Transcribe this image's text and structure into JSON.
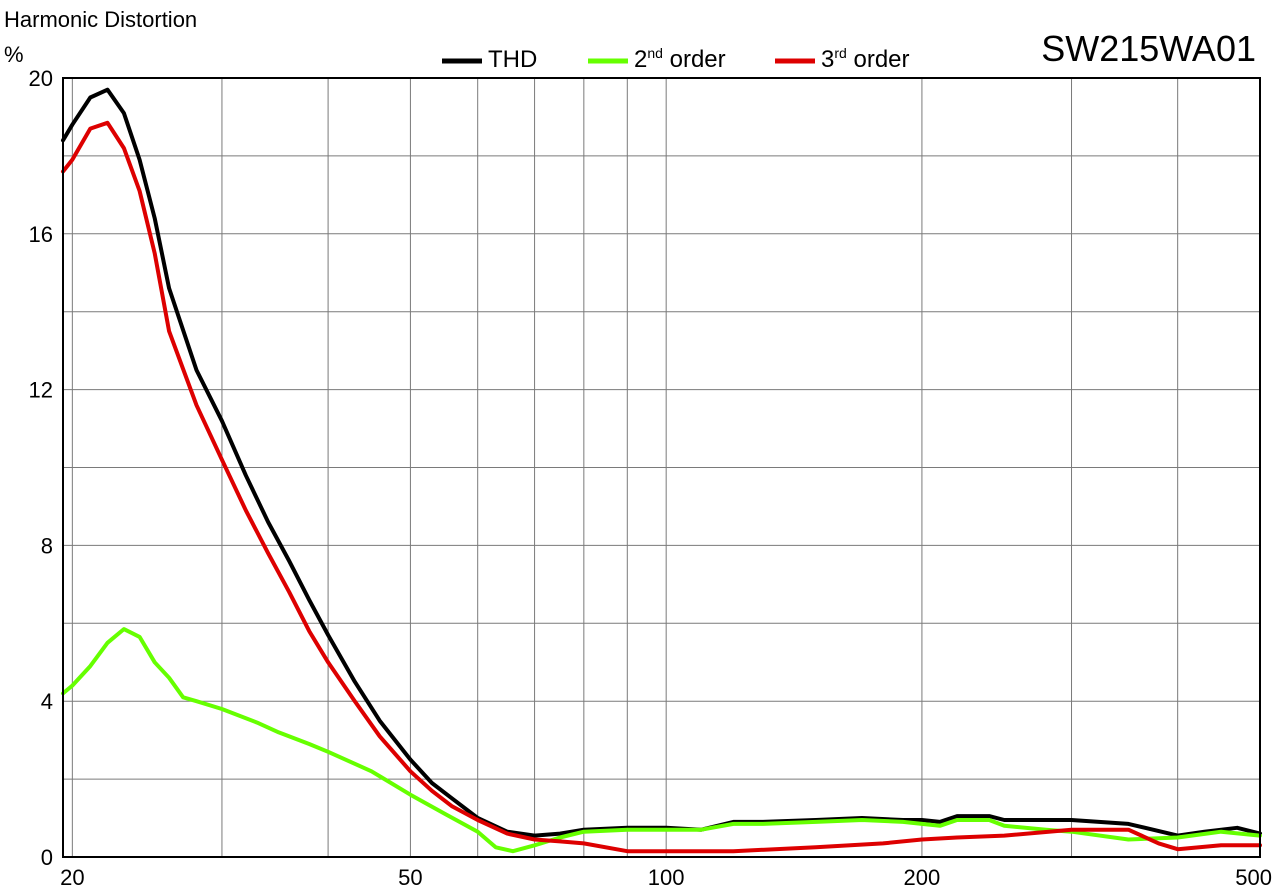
{
  "chart_data": {
    "type": "line",
    "title": "Harmonic Distortion",
    "model": "SW215WA01",
    "ylabel": "%",
    "xlabel": "",
    "x_scale": "log",
    "xlim": [
      19.5,
      500
    ],
    "ylim": [
      0,
      20
    ],
    "grid": true,
    "legend_placement": "top",
    "x_ticks": [
      {
        "value": 20,
        "label": "20"
      },
      {
        "value": 50,
        "label": "50"
      },
      {
        "value": 100,
        "label": "100"
      },
      {
        "value": 200,
        "label": "200"
      },
      {
        "value": 500,
        "label": "500"
      }
    ],
    "x_gridlines": [
      20,
      30,
      40,
      50,
      60,
      70,
      80,
      90,
      100,
      200,
      300,
      400,
      500
    ],
    "y_ticks": [
      {
        "value": 0,
        "label": "0"
      },
      {
        "value": 4,
        "label": "4"
      },
      {
        "value": 8,
        "label": "8"
      },
      {
        "value": 12,
        "label": "12"
      },
      {
        "value": 16,
        "label": "16"
      },
      {
        "value": 20,
        "label": "20"
      }
    ],
    "y_gridlines": [
      0,
      2,
      4,
      6,
      8,
      10,
      12,
      14,
      16,
      18,
      20
    ],
    "series": [
      {
        "name": "THD",
        "name_sup": "",
        "name_suffix": "",
        "color": "#000000",
        "points": [
          [
            19.5,
            18.4
          ],
          [
            20,
            18.8
          ],
          [
            21,
            19.5
          ],
          [
            22,
            19.7
          ],
          [
            23,
            19.1
          ],
          [
            24,
            17.9
          ],
          [
            25,
            16.4
          ],
          [
            26,
            14.6
          ],
          [
            28,
            12.5
          ],
          [
            30,
            11.2
          ],
          [
            32,
            9.8
          ],
          [
            34,
            8.6
          ],
          [
            36,
            7.6
          ],
          [
            38,
            6.6
          ],
          [
            40,
            5.7
          ],
          [
            43,
            4.5
          ],
          [
            46,
            3.5
          ],
          [
            50,
            2.5
          ],
          [
            53,
            1.9
          ],
          [
            56,
            1.5
          ],
          [
            60,
            1.0
          ],
          [
            65,
            0.65
          ],
          [
            70,
            0.55
          ],
          [
            75,
            0.6
          ],
          [
            80,
            0.7
          ],
          [
            90,
            0.75
          ],
          [
            100,
            0.75
          ],
          [
            110,
            0.7
          ],
          [
            120,
            0.9
          ],
          [
            130,
            0.9
          ],
          [
            150,
            0.95
          ],
          [
            170,
            1.0
          ],
          [
            190,
            0.95
          ],
          [
            200,
            0.95
          ],
          [
            210,
            0.9
          ],
          [
            220,
            1.05
          ],
          [
            240,
            1.05
          ],
          [
            250,
            0.95
          ],
          [
            300,
            0.95
          ],
          [
            350,
            0.85
          ],
          [
            400,
            0.55
          ],
          [
            430,
            0.65
          ],
          [
            470,
            0.75
          ],
          [
            500,
            0.6
          ]
        ]
      },
      {
        "name": "2",
        "name_sup": "nd",
        "name_suffix": " order",
        "color": "#66ff00",
        "points": [
          [
            19.5,
            4.2
          ],
          [
            20,
            4.4
          ],
          [
            21,
            4.9
          ],
          [
            22,
            5.5
          ],
          [
            23,
            5.85
          ],
          [
            24,
            5.65
          ],
          [
            25,
            5.0
          ],
          [
            26,
            4.6
          ],
          [
            27,
            4.1
          ],
          [
            28,
            4.0
          ],
          [
            30,
            3.8
          ],
          [
            33,
            3.45
          ],
          [
            35,
            3.2
          ],
          [
            38,
            2.9
          ],
          [
            40,
            2.7
          ],
          [
            45,
            2.2
          ],
          [
            50,
            1.6
          ],
          [
            55,
            1.1
          ],
          [
            60,
            0.65
          ],
          [
            63,
            0.25
          ],
          [
            66,
            0.15
          ],
          [
            70,
            0.3
          ],
          [
            75,
            0.5
          ],
          [
            80,
            0.65
          ],
          [
            90,
            0.7
          ],
          [
            100,
            0.7
          ],
          [
            110,
            0.7
          ],
          [
            120,
            0.85
          ],
          [
            130,
            0.85
          ],
          [
            150,
            0.9
          ],
          [
            170,
            0.95
          ],
          [
            190,
            0.9
          ],
          [
            200,
            0.85
          ],
          [
            210,
            0.8
          ],
          [
            220,
            0.95
          ],
          [
            240,
            0.95
          ],
          [
            250,
            0.8
          ],
          [
            280,
            0.7
          ],
          [
            300,
            0.65
          ],
          [
            350,
            0.45
          ],
          [
            400,
            0.5
          ],
          [
            450,
            0.65
          ],
          [
            500,
            0.55
          ]
        ]
      },
      {
        "name": "3",
        "name_sup": "rd",
        "name_suffix": " order",
        "color": "#dd0000",
        "points": [
          [
            19.5,
            17.6
          ],
          [
            20,
            17.9
          ],
          [
            21,
            18.7
          ],
          [
            22,
            18.85
          ],
          [
            23,
            18.2
          ],
          [
            24,
            17.1
          ],
          [
            25,
            15.5
          ],
          [
            26,
            13.5
          ],
          [
            28,
            11.6
          ],
          [
            30,
            10.2
          ],
          [
            32,
            8.9
          ],
          [
            34,
            7.8
          ],
          [
            36,
            6.8
          ],
          [
            38,
            5.8
          ],
          [
            40,
            5.0
          ],
          [
            43,
            4.0
          ],
          [
            46,
            3.1
          ],
          [
            50,
            2.2
          ],
          [
            53,
            1.7
          ],
          [
            56,
            1.3
          ],
          [
            60,
            0.95
          ],
          [
            65,
            0.6
          ],
          [
            70,
            0.45
          ],
          [
            75,
            0.4
          ],
          [
            80,
            0.35
          ],
          [
            90,
            0.15
          ],
          [
            100,
            0.15
          ],
          [
            120,
            0.15
          ],
          [
            150,
            0.25
          ],
          [
            180,
            0.35
          ],
          [
            200,
            0.45
          ],
          [
            220,
            0.5
          ],
          [
            250,
            0.55
          ],
          [
            300,
            0.7
          ],
          [
            350,
            0.7
          ],
          [
            380,
            0.35
          ],
          [
            400,
            0.2
          ],
          [
            450,
            0.3
          ],
          [
            500,
            0.3
          ]
        ]
      }
    ]
  }
}
